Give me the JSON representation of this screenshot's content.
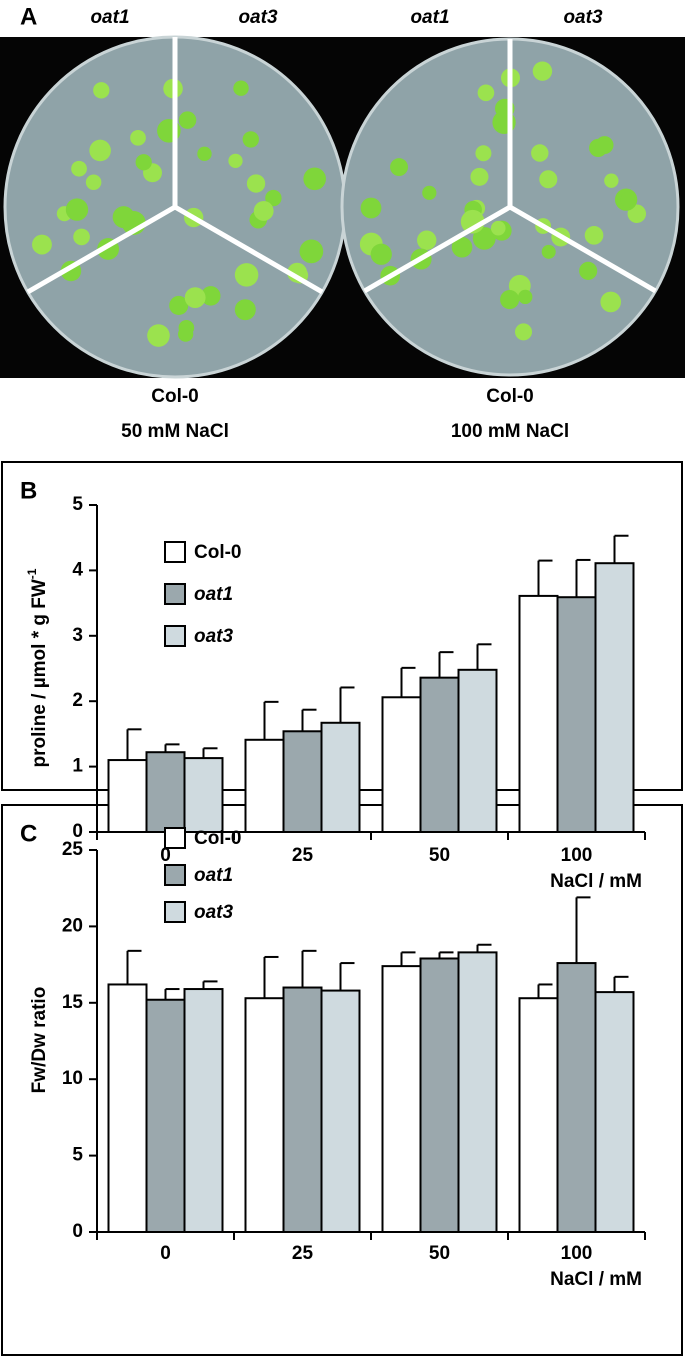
{
  "panel_a": {
    "label": "A",
    "genotype_labels": [
      "oat1",
      "oat3",
      "oat1",
      "oat3"
    ],
    "captions": [
      [
        "Col-0",
        "50 mM NaCl"
      ],
      [
        "Col-0",
        "100 mM NaCl"
      ]
    ]
  },
  "chart_data": [
    {
      "type": "bar",
      "panel_label": "B",
      "y_label": "proline / µmol * g FW",
      "y_label_superscript": "-1",
      "x_label": "NaCl / mM",
      "categories": [
        "0",
        "25",
        "50",
        "100"
      ],
      "series": [
        {
          "name": "Col-0",
          "color": "#ffffff",
          "values": [
            1.1,
            1.41,
            2.06,
            3.61
          ],
          "errors": [
            0.47,
            0.58,
            0.45,
            0.54
          ]
        },
        {
          "name": "oat1",
          "color": "#9ba8ad",
          "values": [
            1.22,
            1.54,
            2.36,
            3.59
          ],
          "errors": [
            0.12,
            0.33,
            0.39,
            0.57
          ]
        },
        {
          "name": "oat3",
          "color": "#cfdadf",
          "values": [
            1.13,
            1.67,
            2.48,
            4.11
          ],
          "errors": [
            0.15,
            0.54,
            0.39,
            0.42
          ]
        }
      ],
      "ylim": [
        0,
        5
      ],
      "yticks": [
        0,
        1,
        2,
        3,
        4,
        5
      ],
      "legend": "upper-left"
    },
    {
      "type": "bar",
      "panel_label": "C",
      "y_label": "Fw/Dw ratio",
      "x_label": "NaCl / mM",
      "categories": [
        "0",
        "25",
        "50",
        "100"
      ],
      "series": [
        {
          "name": "Col-0",
          "color": "#ffffff",
          "values": [
            16.2,
            15.3,
            17.4,
            15.3
          ],
          "errors": [
            2.2,
            2.7,
            0.9,
            0.9
          ]
        },
        {
          "name": "oat1",
          "color": "#9ba8ad",
          "values": [
            15.2,
            16.0,
            17.9,
            17.6
          ],
          "errors": [
            0.7,
            2.4,
            0.4,
            4.3
          ]
        },
        {
          "name": "oat3",
          "color": "#cfdadf",
          "values": [
            15.9,
            15.8,
            18.3,
            15.7
          ],
          "errors": [
            0.5,
            1.8,
            0.5,
            1.0
          ]
        }
      ],
      "ylim": [
        0,
        25
      ],
      "yticks": [
        0,
        5,
        10,
        15,
        20,
        25
      ],
      "legend": "upper-left"
    }
  ]
}
